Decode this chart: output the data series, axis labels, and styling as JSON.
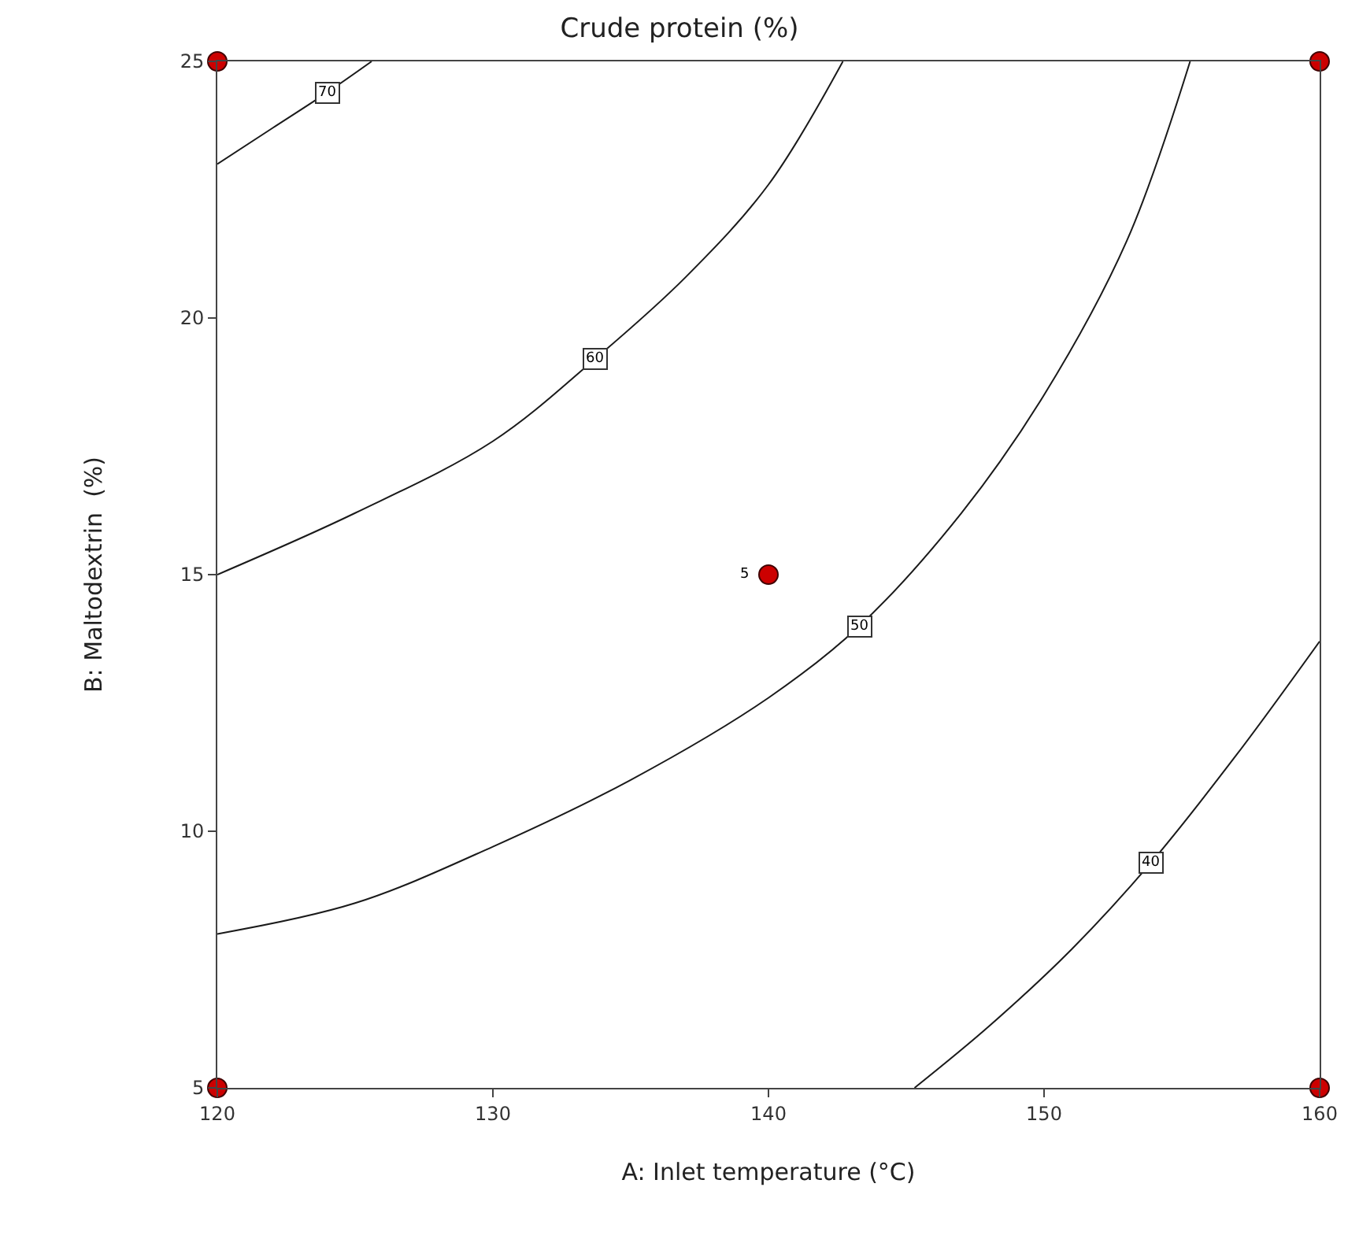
{
  "chart_data": {
    "type": "line",
    "title": "Crude protein (%)",
    "xlabel": "A: Inlet temperature (°C)",
    "ylabel": "B: Maltodextrin  (%)",
    "xlim": [
      120,
      160
    ],
    "ylim": [
      5,
      25
    ],
    "xticks": [
      120,
      130,
      140,
      150,
      160
    ],
    "yticks": [
      5,
      10,
      15,
      20,
      25
    ],
    "series": [
      {
        "color": "#1a1a1a",
        "x": [
          120,
          122,
          124,
          125.6
        ],
        "values": [
          23.0,
          23.7,
          24.4,
          25
        ]
      },
      {
        "color": "#1a1a1a",
        "x": [
          120,
          125,
          130,
          133.7,
          137,
          140,
          142.7
        ],
        "values": [
          15,
          16.2,
          17.6,
          19.2,
          20.8,
          22.6,
          25
        ]
      },
      {
        "color": "#1a1a1a",
        "x": [
          120,
          125,
          130,
          135,
          140,
          143.3,
          147,
          150,
          153,
          155.3
        ],
        "values": [
          8,
          8.6,
          9.7,
          11.0,
          12.6,
          14,
          16.2,
          18.5,
          21.5,
          25
        ]
      },
      {
        "color": "#1a1a1a",
        "x": [
          145.3,
          148,
          151,
          153.9,
          157,
          160
        ],
        "values": [
          5,
          6.2,
          7.7,
          9.4,
          11.5,
          13.7
        ]
      },
      {
        "type": "scatter",
        "color": "#cc0000",
        "x": [
          120,
          120,
          160,
          160,
          140
        ],
        "values": [
          5,
          25,
          5,
          25,
          15
        ]
      }
    ],
    "annotations": [
      {
        "text": "70",
        "x": 124,
        "y": 24.4
      },
      {
        "text": "60",
        "x": 133.7,
        "y": 19.2
      },
      {
        "text": "50",
        "x": 143.3,
        "y": 14
      },
      {
        "text": "40",
        "x": 153.9,
        "y": 9.4
      },
      {
        "text": "5",
        "x": 140,
        "y": 15
      }
    ]
  }
}
